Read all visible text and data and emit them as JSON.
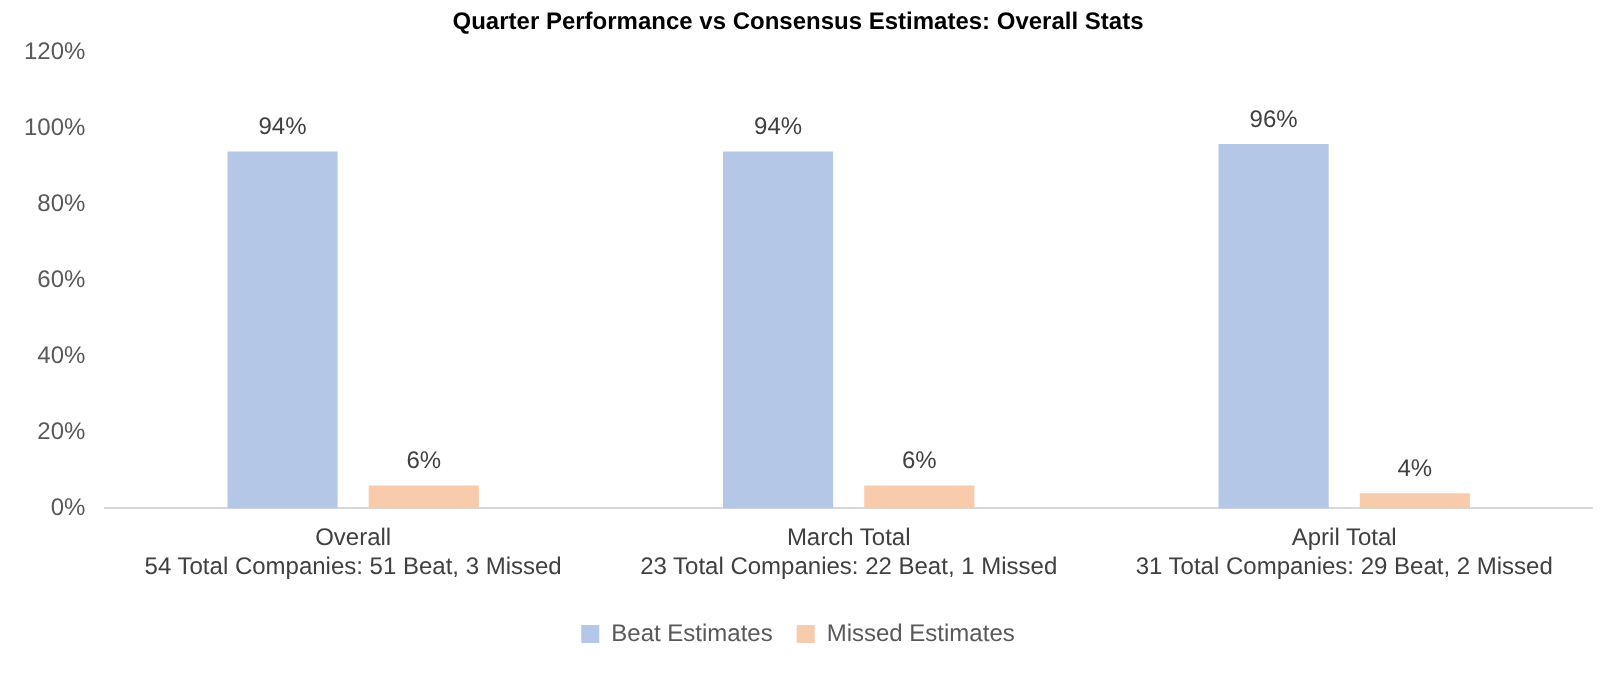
{
  "chart_data": {
    "type": "bar",
    "title": "Quarter Performance vs Consensus Estimates: Overall Stats",
    "categories": [
      "Overall\n54 Total Companies: 51 Beat, 3 Missed",
      "March Total\n23 Total Companies: 22 Beat, 1 Missed",
      "April Total\n31 Total Companies: 29 Beat, 2 Missed"
    ],
    "series": [
      {
        "name": "Beat Estimates",
        "color": "#b4c7e7",
        "values": [
          94,
          94,
          96
        ],
        "value_labels": [
          "94%",
          "94%",
          "96%"
        ]
      },
      {
        "name": "Missed Estimates",
        "color": "#f8cbad",
        "values": [
          6,
          6,
          4
        ],
        "value_labels": [
          "6%",
          "6%",
          "4%"
        ]
      }
    ],
    "ylim": [
      0,
      120
    ],
    "yticks": [
      {
        "value": 0,
        "label": "0%"
      },
      {
        "value": 20,
        "label": "20%"
      },
      {
        "value": 40,
        "label": "40%"
      },
      {
        "value": 60,
        "label": "60%"
      },
      {
        "value": 80,
        "label": "80%"
      },
      {
        "value": 100,
        "label": "100%"
      },
      {
        "value": 120,
        "label": "120%"
      }
    ],
    "grid": false,
    "legend": "bottom"
  }
}
